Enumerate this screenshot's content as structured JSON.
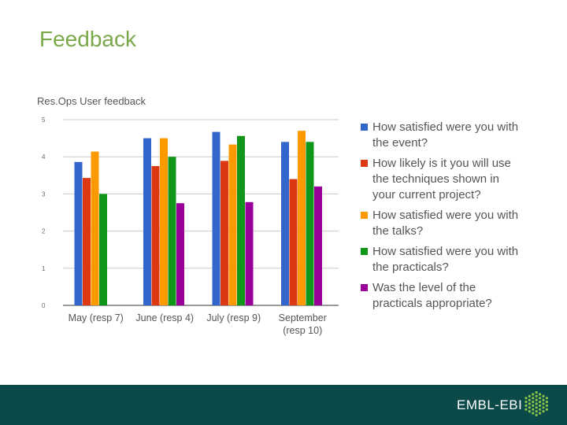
{
  "slide": {
    "title": "Feedback"
  },
  "footer": {
    "brand": "EMBL-EBI"
  },
  "chart_data": {
    "type": "bar",
    "title": "Res.Ops User feedback",
    "categories": [
      [
        "May (resp 7)"
      ],
      [
        "June (resp 4)"
      ],
      [
        "July (resp 9)"
      ],
      [
        "September",
        "(resp 10)"
      ]
    ],
    "ylim": [
      0,
      5
    ],
    "yticks": [
      "0",
      "1",
      "2",
      "3",
      "4",
      "5"
    ],
    "grid": true,
    "legend_position": "right",
    "series": [
      {
        "name": [
          "How satisfied were you with",
          "the event?"
        ],
        "color": "#3366cc",
        "values": [
          3.86,
          4.5,
          4.67,
          4.4
        ]
      },
      {
        "name": [
          "How likely is it you will use",
          "the techniques shown in",
          "your current project?"
        ],
        "color": "#dc3912",
        "values": [
          3.43,
          3.75,
          3.89,
          3.4
        ]
      },
      {
        "name": [
          "How satisfied were you with",
          "the talks?"
        ],
        "color": "#ff9900",
        "values": [
          4.14,
          4.5,
          4.33,
          4.7
        ]
      },
      {
        "name": [
          "How satisfied were you with",
          "the practicals?"
        ],
        "color": "#109618",
        "values": [
          3.0,
          4.0,
          4.56,
          4.4
        ]
      },
      {
        "name": [
          "Was the level of the",
          "practicals appropriate?"
        ],
        "color": "#990099",
        "values": [
          null,
          2.75,
          2.78,
          3.2
        ]
      }
    ]
  }
}
